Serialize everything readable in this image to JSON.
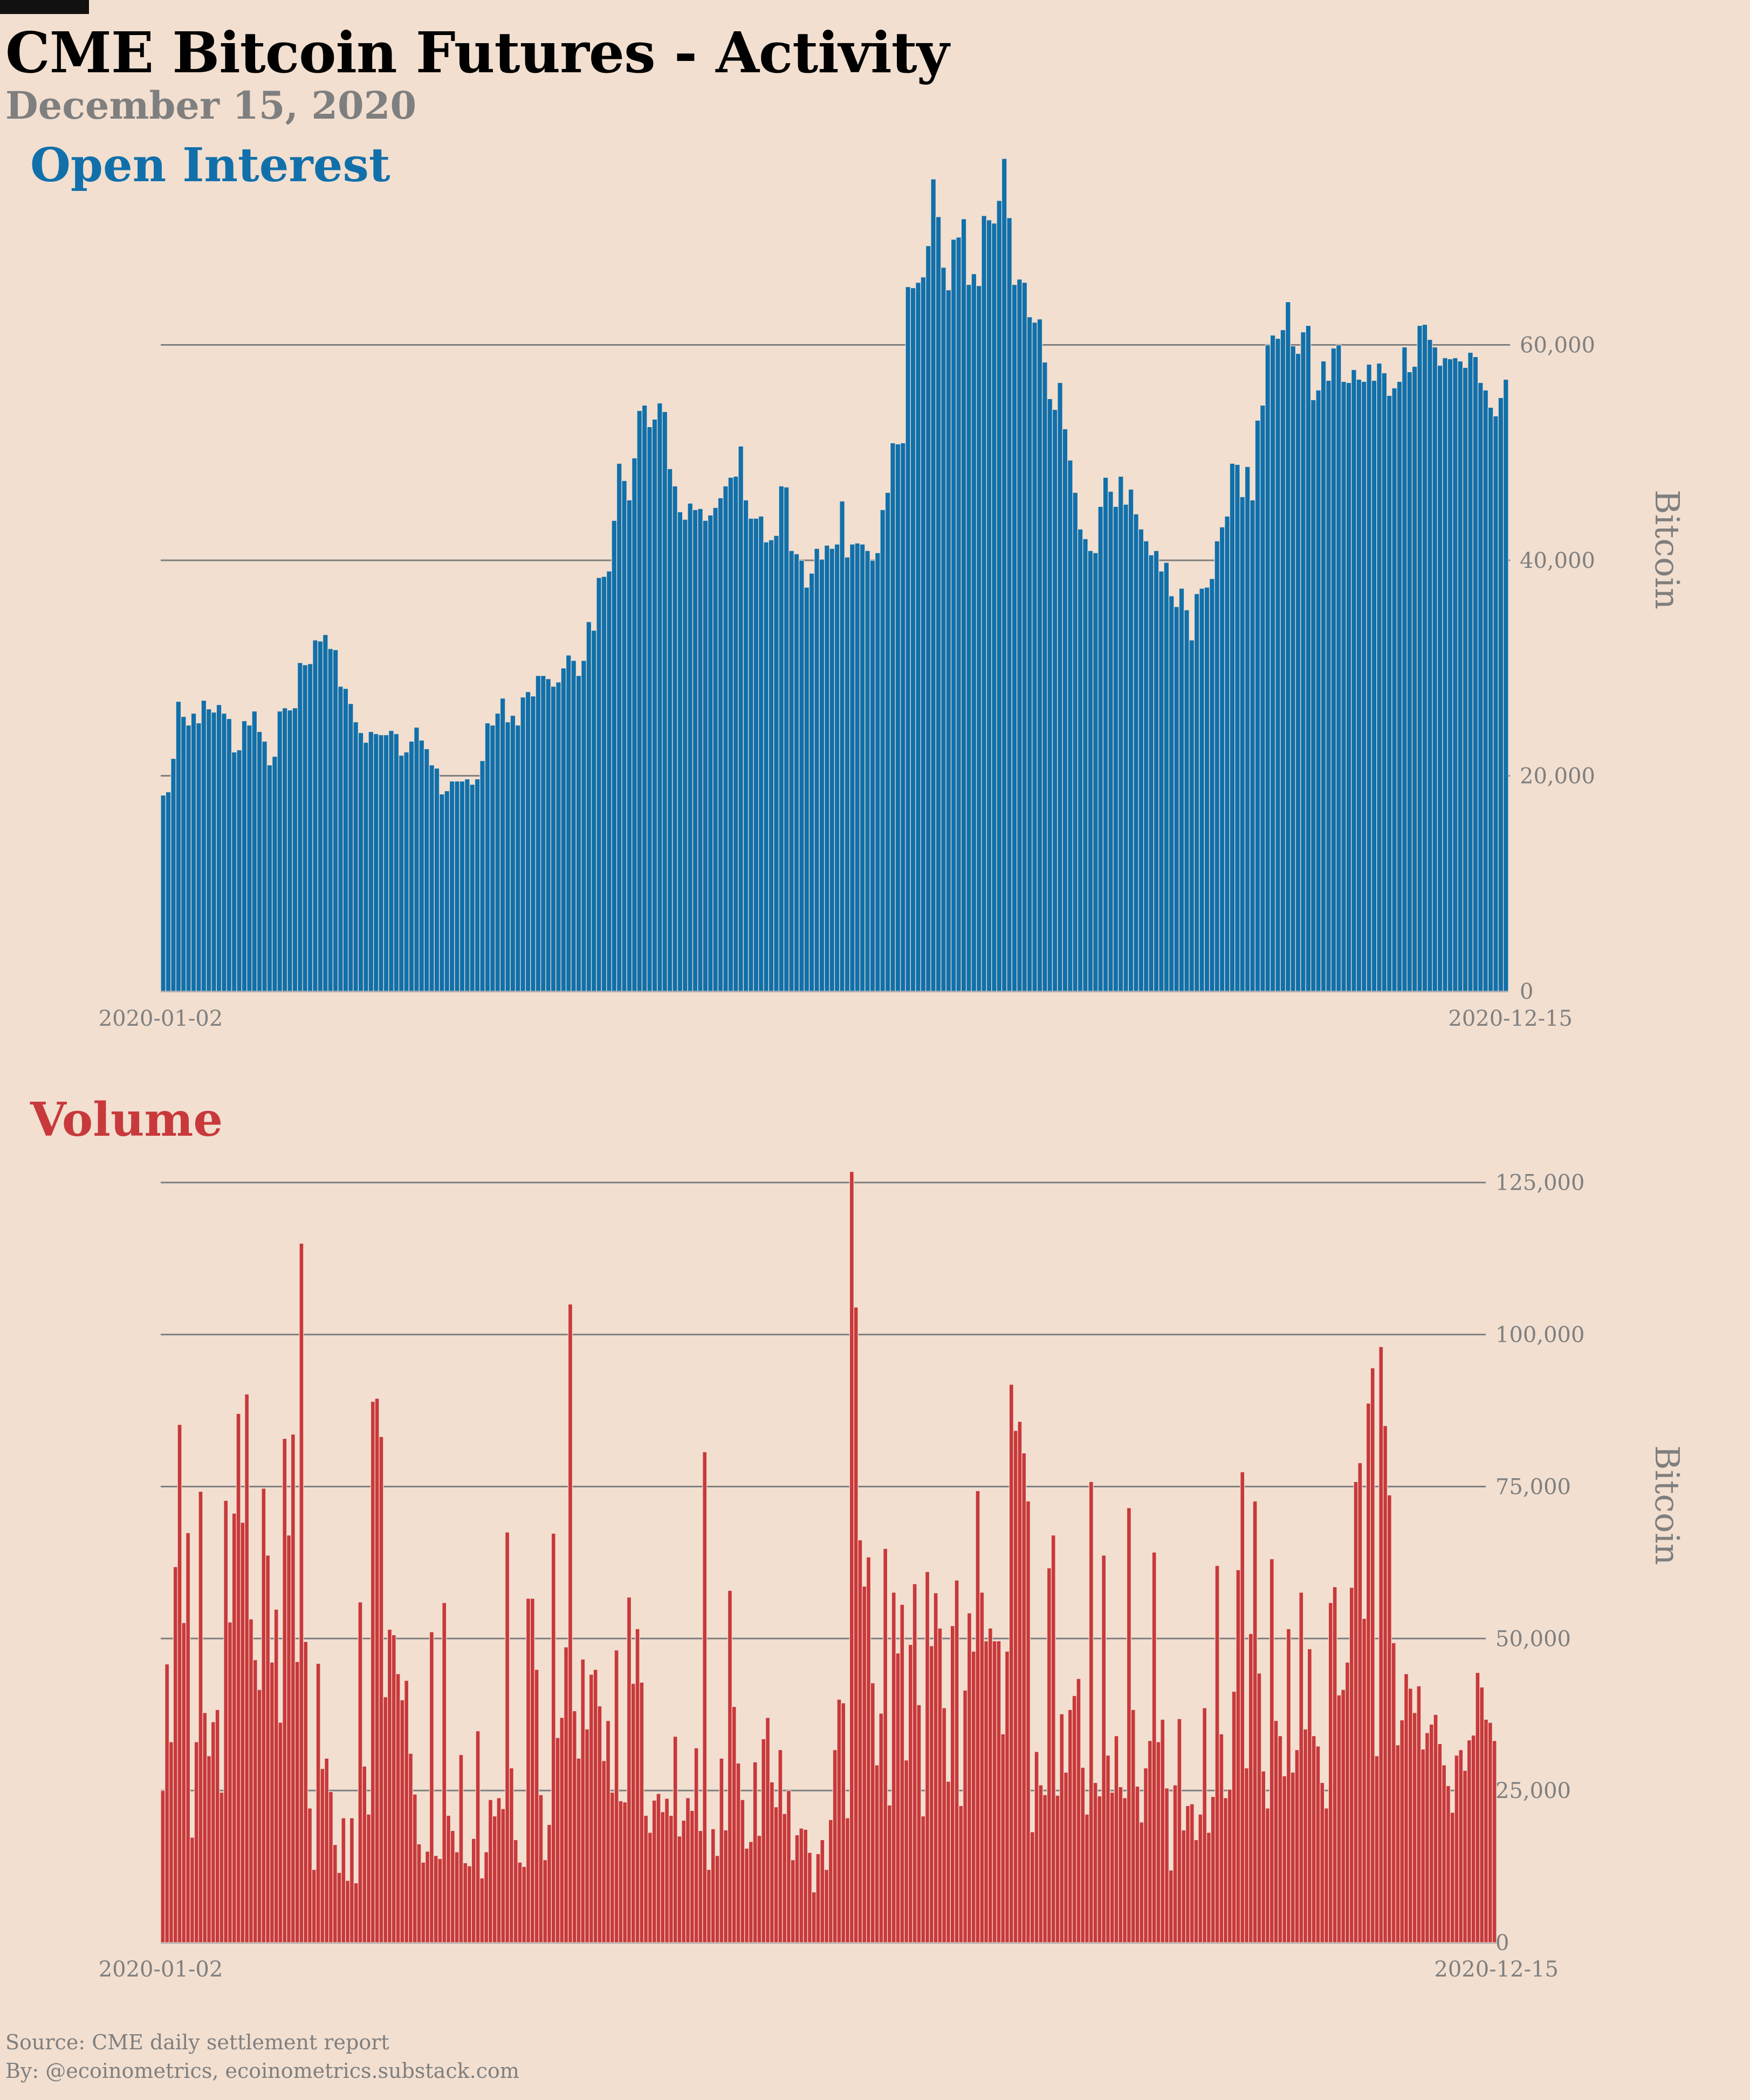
{
  "header": {
    "title": "CME Bitcoin Futures - Activity",
    "subtitle": "December 15, 2020"
  },
  "colors": {
    "background": "#f2dfd0",
    "open_interest": "#1170aa",
    "volume": "#c8393b",
    "grid": "#7f7f7f",
    "axis_text": "#7f7f7f"
  },
  "footer": {
    "source": "Source: CME daily settlement report",
    "by": "By: @ecoinometrics, ecoinometrics.substack.com"
  },
  "chart_data": [
    {
      "type": "bar",
      "title": "Open Interest",
      "ylabel": "Bitcoin",
      "y_axis_position": "right",
      "grid": "horizontal",
      "ylim": [
        0,
        77000
      ],
      "yticks": [
        0,
        20000,
        40000,
        60000
      ],
      "ytick_labels": [
        "0",
        "20,000",
        "40,000",
        "60,000"
      ],
      "x_start": "2020-01-02",
      "x_end": "2020-12-15",
      "xtick_labels": [
        "2020-01-02",
        "2020-12-15"
      ],
      "values": [
        18200,
        18500,
        21600,
        26900,
        25500,
        24700,
        25800,
        24900,
        27000,
        26200,
        25900,
        26600,
        25800,
        25300,
        22200,
        22400,
        25100,
        24700,
        26000,
        24100,
        23200,
        21000,
        21800,
        26000,
        26300,
        26100,
        26300,
        30500,
        30300,
        30400,
        32600,
        32500,
        33100,
        31800,
        31700,
        28300,
        28100,
        26700,
        25000,
        24000,
        23100,
        24100,
        23900,
        23800,
        23800,
        24200,
        23900,
        21900,
        22200,
        23200,
        24500,
        23300,
        22500,
        21000,
        20700,
        18300,
        18600,
        19500,
        19500,
        19500,
        19700,
        19200,
        19700,
        21400,
        24900,
        24700,
        25800,
        27200,
        25000,
        25600,
        24700,
        27300,
        27800,
        27400,
        29300,
        29300,
        29000,
        28300,
        28700,
        30000,
        31200,
        30700,
        29300,
        30700,
        34300,
        33500,
        38400,
        38500,
        39000,
        43700,
        49000,
        47400,
        45600,
        49500,
        53900,
        54400,
        52400,
        53100,
        54600,
        53800,
        48500,
        46900,
        44500,
        43800,
        45300,
        44700,
        44800,
        43700,
        44200,
        44900,
        45800,
        46900,
        47700,
        47800,
        50600,
        45600,
        43900,
        43900,
        44100,
        41700,
        41900,
        42300,
        46900,
        46800,
        40900,
        40600,
        40000,
        37500,
        38800,
        41100,
        40100,
        41400,
        41100,
        41500,
        45500,
        40300,
        41500,
        41600,
        41500,
        40900,
        40000,
        40700,
        44700,
        46300,
        50900,
        50800,
        50900,
        65400,
        65300,
        65800,
        66300,
        69200,
        75400,
        71900,
        67200,
        65100,
        69800,
        70000,
        71700,
        65600,
        66600,
        65500,
        72000,
        71600,
        71300,
        73400,
        77300,
        71800,
        65600,
        66100,
        65800,
        62600,
        62100,
        62400,
        58400,
        55000,
        54000,
        56500,
        52200,
        49300,
        46300,
        42900,
        42000,
        40900,
        40700,
        45000,
        47700,
        46400,
        45000,
        47800,
        45200,
        46600,
        44300,
        42900,
        41800,
        40500,
        40900,
        39000,
        39800,
        36700,
        35700,
        37400,
        35400,
        32600,
        36900,
        37400,
        37500,
        38300,
        41800,
        43100,
        44100,
        49000,
        48900,
        45900,
        48700,
        45600,
        53000,
        54400,
        60000,
        60900,
        60600,
        61400,
        64000,
        59900,
        59200,
        61200,
        61800,
        54900,
        55800,
        58500,
        56700,
        59700,
        60000,
        56600,
        56500,
        57700,
        56800,
        56600,
        58200,
        56700,
        58300,
        57400,
        55300,
        56000,
        56600,
        59800,
        57500,
        58000,
        61800,
        61900,
        60500,
        59800,
        58100,
        58800,
        58700,
        58800,
        58500,
        57900,
        59300,
        58900,
        56500,
        55800,
        54200,
        53400,
        55100,
        56800
      ],
      "value_precision": "estimated from gridlines, ~±500"
    },
    {
      "type": "bar",
      "title": "Volume",
      "ylabel": "Bitcoin",
      "y_axis_position": "right",
      "grid": "horizontal",
      "ylim": [
        0,
        135000
      ],
      "yticks": [
        0,
        25000,
        50000,
        75000,
        100000,
        125000
      ],
      "ytick_labels": [
        "0",
        "25,000",
        "50,000",
        "75,000",
        "100,000",
        "125,000"
      ],
      "x_start": "2020-01-02",
      "x_end": "2020-12-15",
      "xtick_labels": [
        "2020-01-02",
        "2020-12-15"
      ],
      "values": [
        25000,
        45800,
        33000,
        61800,
        85200,
        52600,
        67400,
        17300,
        33000,
        74200,
        37800,
        30700,
        36300,
        38300,
        24700,
        72700,
        52700,
        70600,
        87000,
        69100,
        90200,
        53200,
        46500,
        41600,
        74700,
        63700,
        46100,
        54800,
        36200,
        82900,
        67000,
        83600,
        46200,
        115000,
        49500,
        22100,
        12000,
        45900,
        28600,
        30300,
        24800,
        16100,
        11500,
        20500,
        10200,
        20500,
        9800,
        56000,
        29000,
        21100,
        89000,
        89500,
        83200,
        40400,
        51500,
        50600,
        44200,
        39900,
        43100,
        31100,
        24400,
        16200,
        13200,
        15000,
        51100,
        14300,
        13800,
        55900,
        20900,
        18400,
        14900,
        30900,
        13100,
        12600,
        17100,
        34800,
        10600,
        14900,
        23500,
        20800,
        23800,
        22000,
        67500,
        28700,
        16900,
        13200,
        12500,
        56600,
        56600,
        44900,
        24300,
        13600,
        19400,
        67300,
        33700,
        37000,
        48600,
        105000,
        38100,
        30300,
        46600,
        35100,
        44100,
        44900,
        38900,
        29900,
        36500,
        24700,
        48100,
        23300,
        23100,
        56800,
        42600,
        51600,
        42800,
        20900,
        18100,
        23400,
        24500,
        21500,
        23700,
        20900,
        33900,
        17500,
        20100,
        23800,
        21700,
        32000,
        18400,
        80700,
        12000,
        18700,
        14300,
        30300,
        18500,
        57900,
        38800,
        29500,
        23500,
        15500,
        16600,
        29700,
        17600,
        33500,
        37000,
        26400,
        22300,
        31700,
        21200,
        25000,
        13600,
        17700,
        18800,
        18600,
        14800,
        8300,
        14600,
        16900,
        12000,
        20200,
        31700,
        40000,
        39400,
        20500,
        126800,
        104500,
        66200,
        58600,
        63400,
        42700,
        29200,
        37700,
        64800,
        22600,
        57600,
        47600,
        55600,
        30000,
        49000,
        59000,
        39100,
        20800,
        61000,
        48800,
        57500,
        51700,
        38600,
        26500,
        52100,
        59600,
        22500,
        41500,
        54200,
        47900,
        74300,
        57600,
        49600,
        51700,
        49600,
        49600,
        34300,
        47900,
        91800,
        84200,
        85700,
        80500,
        72600,
        18200,
        31400,
        25900,
        24300,
        61600,
        67000,
        24200,
        37600,
        28000,
        38300,
        40600,
        43400,
        28800,
        21100,
        75800,
        26300,
        24100,
        63700,
        30800,
        24700,
        34000,
        25600,
        23800,
        71500,
        38300,
        25700,
        19800,
        28700,
        33200,
        64200,
        33000,
        36700,
        25400,
        11900,
        25900,
        36800,
        18500,
        22500,
        22800,
        16900,
        21100,
        38600,
        18100,
        24000,
        62000,
        34300,
        23800,
        25200,
        41300,
        61300,
        77400,
        28700,
        50800,
        72600,
        44300,
        28200,
        22100,
        63100,
        36500,
        34000,
        27400,
        51600,
        28000,
        31700,
        57600,
        35100,
        48300,
        34000,
        32300,
        26300,
        22100,
        55900,
        58500,
        40700,
        41600,
        46100,
        58400,
        75800,
        78900,
        53300,
        88700,
        94500,
        30700,
        98000,
        85000,
        73600,
        49300,
        32500,
        36600,
        44200,
        41800,
        37800,
        42200,
        31800,
        34500,
        35900,
        37500,
        32700,
        29200,
        25800,
        21400,
        30800,
        31700,
        28300,
        33300,
        34100,
        44400,
        42000,
        36700,
        36200,
        33200
      ]
    }
  ]
}
